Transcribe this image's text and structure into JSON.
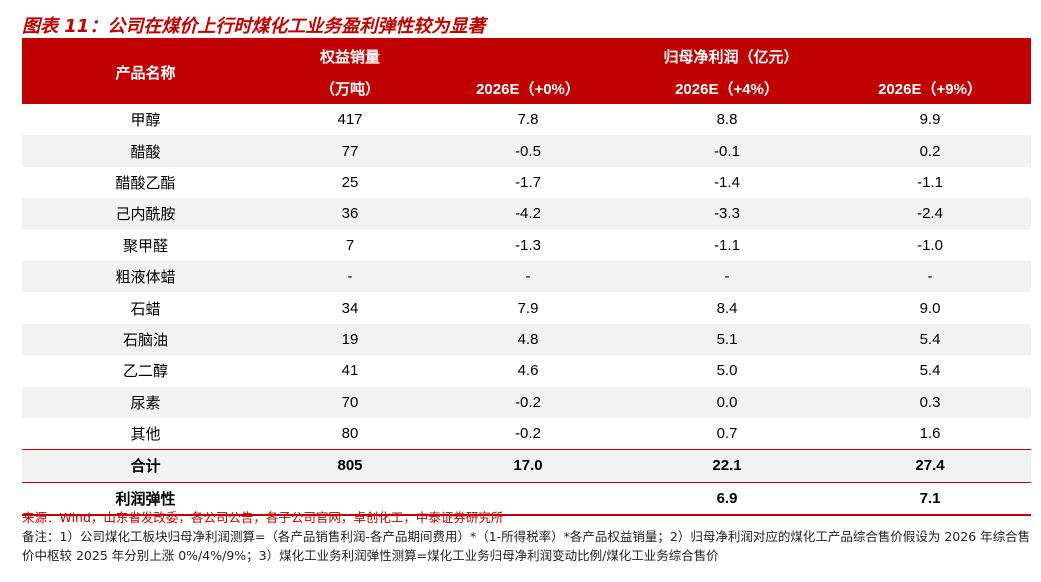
{
  "title": "图表 11：公司在煤价上行时煤化工业务盈利弹性较为显著",
  "header": {
    "product_col": "产品名称",
    "volume_col_line1": "权益销量",
    "volume_col_line2": "（万吨）",
    "profit_group": "归母净利润（亿元）",
    "scenarios": [
      "2026E（+0%）",
      "2026E（+4%）",
      "2026E（+9%）"
    ]
  },
  "rows": [
    {
      "name": "甲醇",
      "volume": "417",
      "s0": "7.8",
      "s4": "8.8",
      "s9": "9.9"
    },
    {
      "name": "醋酸",
      "volume": "77",
      "s0": "-0.5",
      "s4": "-0.1",
      "s9": "0.2"
    },
    {
      "name": "醋酸乙酯",
      "volume": "25",
      "s0": "-1.7",
      "s4": "-1.4",
      "s9": "-1.1"
    },
    {
      "name": "己内酰胺",
      "volume": "36",
      "s0": "-4.2",
      "s4": "-3.3",
      "s9": "-2.4"
    },
    {
      "name": "聚甲醛",
      "volume": "7",
      "s0": "-1.3",
      "s4": "-1.1",
      "s9": "-1.0"
    },
    {
      "name": "粗液体蜡",
      "volume": "-",
      "s0": "-",
      "s4": "-",
      "s9": "-"
    },
    {
      "name": "石蜡",
      "volume": "34",
      "s0": "7.9",
      "s4": "8.4",
      "s9": "9.0"
    },
    {
      "name": "石脑油",
      "volume": "19",
      "s0": "4.8",
      "s4": "5.1",
      "s9": "5.4"
    },
    {
      "name": "乙二醇",
      "volume": "41",
      "s0": "4.6",
      "s4": "5.0",
      "s9": "5.4"
    },
    {
      "name": "尿素",
      "volume": "70",
      "s0": "-0.2",
      "s4": "0.0",
      "s9": "0.3"
    },
    {
      "name": "其他",
      "volume": "80",
      "s0": "-0.2",
      "s4": "0.7",
      "s9": "1.6"
    }
  ],
  "total": {
    "name": "合计",
    "volume": "805",
    "s0": "17.0",
    "s4": "22.1",
    "s9": "27.4"
  },
  "elasticity": {
    "name": "利润弹性",
    "volume": "",
    "s0": "",
    "s4": "6.9",
    "s9": "7.1"
  },
  "footer": {
    "source": "来源：Wind，山东省发改委，各公司公告，各子公司官网，卓创化工，中泰证券研究所",
    "note": "备注：1）公司煤化工板块归母净利润测算=（各产品销售利润-各产品期间费用）*（1-所得税率）*各产品权益销量；2）归母净利润对应的煤化工产品综合售价假设为 2026 年综合售价中枢较 2025 年分别上涨 0%/4%/9%；3）煤化工业务利润弹性测算=煤化工业务归母净利润变动比例/煤化工业务综合售价"
  },
  "colors": {
    "accent": "#c00000",
    "stripe": "#f2f2f2"
  }
}
